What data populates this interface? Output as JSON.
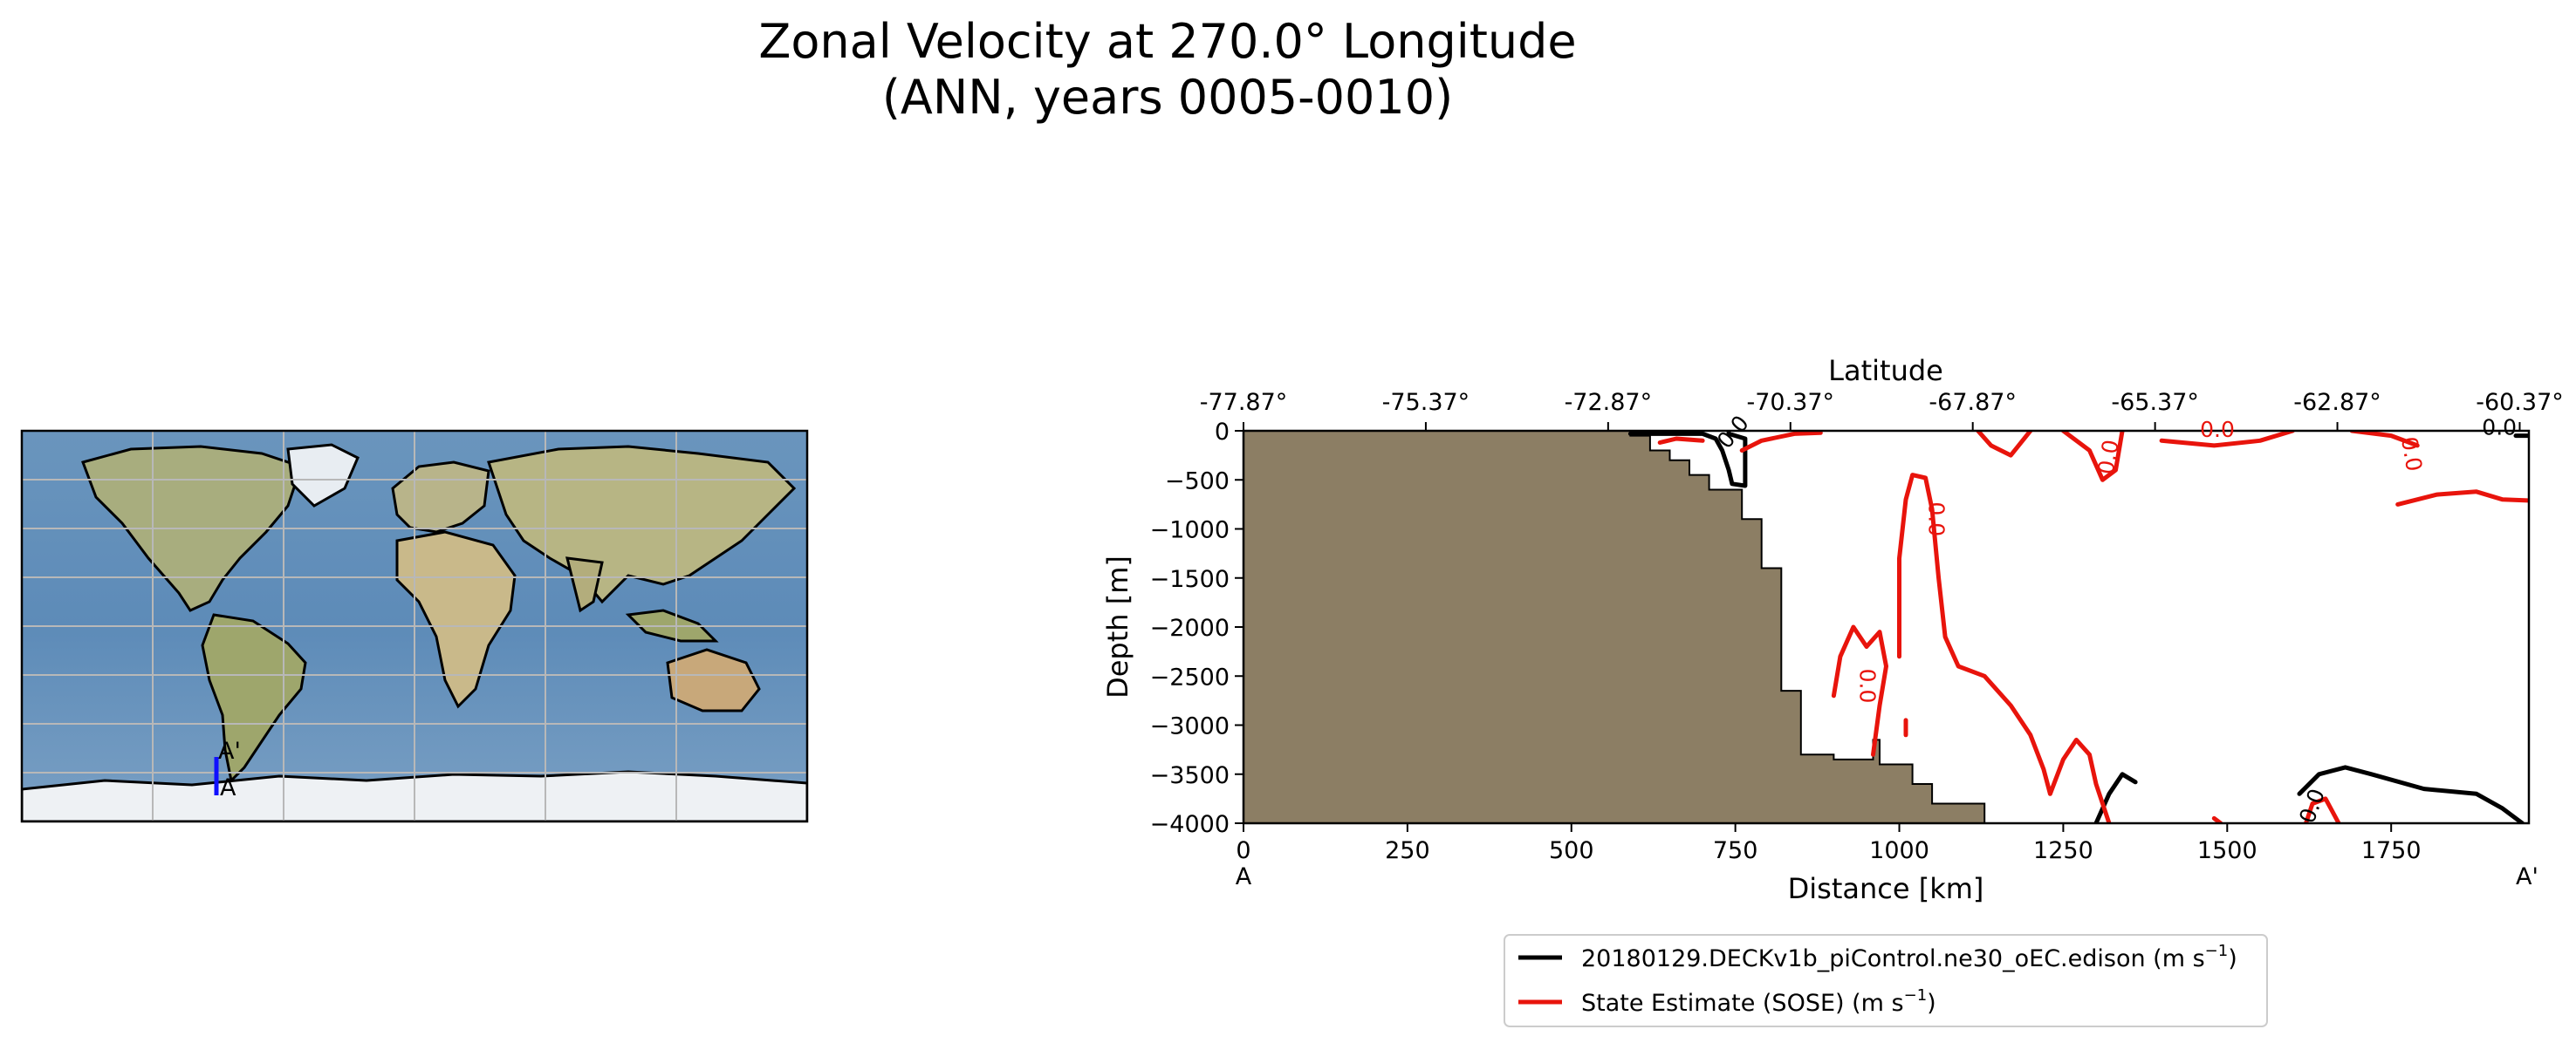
{
  "title_line1": "Zonal Velocity at 270.0° Longitude",
  "title_line2": "(ANN, years 0005-0010)",
  "map": {
    "section_start_label": "A",
    "section_end_label": "A'"
  },
  "chart_data": {
    "type": "contour",
    "xlabel": "Distance [km]",
    "ylabel": "Depth [m]",
    "top_xlabel": "Latitude",
    "xlim": [
      0,
      1960
    ],
    "ylim": [
      -4000,
      0
    ],
    "x_ticks": [
      0,
      250,
      500,
      750,
      1000,
      1250,
      1500,
      1750
    ],
    "x_tick_labels": [
      "0",
      "250",
      "500",
      "750",
      "1000",
      "1250",
      "1500",
      "1750"
    ],
    "y_ticks": [
      0,
      -500,
      -1000,
      -1500,
      -2000,
      -2500,
      -3000,
      -3500,
      -4000
    ],
    "y_tick_labels": [
      "0",
      "−500",
      "−1000",
      "−1500",
      "−2000",
      "−2500",
      "−3000",
      "−3500",
      "−4000"
    ],
    "top_ticks_km": [
      0,
      278,
      556,
      834,
      1112,
      1390,
      1668,
      1946
    ],
    "top_tick_labels": [
      "-77.87°",
      "-75.37°",
      "-72.87°",
      "-70.37°",
      "-67.87°",
      "-65.37°",
      "-62.87°",
      "-60.37°"
    ],
    "start_label": "A",
    "end_label": "A'",
    "bathymetry": [
      [
        0,
        0
      ],
      [
        590,
        0
      ],
      [
        590,
        -50
      ],
      [
        620,
        -50
      ],
      [
        620,
        -200
      ],
      [
        650,
        -200
      ],
      [
        650,
        -300
      ],
      [
        680,
        -300
      ],
      [
        680,
        -450
      ],
      [
        710,
        -450
      ],
      [
        710,
        -600
      ],
      [
        760,
        -600
      ],
      [
        760,
        -900
      ],
      [
        790,
        -900
      ],
      [
        790,
        -1400
      ],
      [
        820,
        -1400
      ],
      [
        820,
        -2650
      ],
      [
        850,
        -2650
      ],
      [
        850,
        -3300
      ],
      [
        900,
        -3300
      ],
      [
        900,
        -3350
      ],
      [
        960,
        -3350
      ],
      [
        960,
        -3150
      ],
      [
        970,
        -3150
      ],
      [
        970,
        -3400
      ],
      [
        1020,
        -3400
      ],
      [
        1020,
        -3600
      ],
      [
        1050,
        -3600
      ],
      [
        1050,
        -3800
      ],
      [
        1130,
        -3800
      ],
      [
        1130,
        -4000
      ],
      [
        0,
        -4000
      ]
    ],
    "contour_level_label": "0.0",
    "series": [
      {
        "name": "20180129.DECKv1b_piControl.ne30_oEC.edison (m s",
        "name_sup": "−1",
        "name_suffix": ")",
        "color": "#000000",
        "lines": [
          [
            [
              590,
              -30
            ],
            [
              700,
              -30
            ],
            [
              720,
              -80
            ],
            [
              730,
              -200
            ],
            [
              740,
              -400
            ],
            [
              745,
              -540
            ],
            [
              765,
              -560
            ],
            [
              765,
              -80
            ],
            [
              740,
              -30
            ],
            [
              740,
              0
            ]
          ],
          [
            [
              1300,
              -4000
            ],
            [
              1320,
              -3700
            ],
            [
              1340,
              -3500
            ],
            [
              1360,
              -3580
            ]
          ],
          [
            [
              1610,
              -3700
            ],
            [
              1640,
              -3500
            ],
            [
              1680,
              -3430
            ],
            [
              1720,
              -3500
            ],
            [
              1800,
              -3650
            ],
            [
              1880,
              -3700
            ],
            [
              1920,
              -3850
            ],
            [
              1950,
              -4000
            ]
          ],
          [
            [
              1940,
              -50
            ],
            [
              1958,
              -50
            ]
          ]
        ]
      },
      {
        "name": "State Estimate (SOSE) (m s",
        "name_sup": "−1",
        "name_suffix": ")",
        "color": "#e8140c",
        "lines": [
          [
            [
              635,
              -120
            ],
            [
              660,
              -80
            ],
            [
              700,
              -100
            ]
          ],
          [
            [
              760,
              -200
            ],
            [
              790,
              -100
            ],
            [
              840,
              -30
            ],
            [
              880,
              -20
            ]
          ],
          [
            [
              1000,
              -2300
            ],
            [
              1000,
              -1300
            ],
            [
              1010,
              -700
            ],
            [
              1020,
              -450
            ],
            [
              1040,
              -480
            ],
            [
              1050,
              -800
            ],
            [
              1060,
              -1500
            ],
            [
              1070,
              -2100
            ],
            [
              1090,
              -2400
            ],
            [
              1130,
              -2500
            ],
            [
              1170,
              -2800
            ],
            [
              1200,
              -3100
            ],
            [
              1220,
              -3450
            ],
            [
              1230,
              -3700
            ],
            [
              1250,
              -3350
            ],
            [
              1270,
              -3150
            ],
            [
              1290,
              -3300
            ],
            [
              1300,
              -3600
            ],
            [
              1320,
              -4000
            ]
          ],
          [
            [
              900,
              -2700
            ],
            [
              910,
              -2300
            ],
            [
              930,
              -2000
            ],
            [
              950,
              -2200
            ],
            [
              970,
              -2050
            ],
            [
              980,
              -2400
            ],
            [
              970,
              -2800
            ],
            [
              960,
              -3300
            ]
          ],
          [
            [
              1010,
              -2950
            ],
            [
              1010,
              -3100
            ]
          ],
          [
            [
              1120,
              0
            ],
            [
              1140,
              -150
            ],
            [
              1170,
              -250
            ],
            [
              1200,
              0
            ]
          ],
          [
            [
              1250,
              0
            ],
            [
              1290,
              -200
            ],
            [
              1310,
              -500
            ],
            [
              1330,
              -400
            ],
            [
              1340,
              0
            ]
          ],
          [
            [
              1400,
              -100
            ],
            [
              1480,
              -150
            ],
            [
              1550,
              -100
            ],
            [
              1600,
              0
            ]
          ],
          [
            [
              1690,
              0
            ],
            [
              1750,
              -50
            ],
            [
              1790,
              -150
            ]
          ],
          [
            [
              1760,
              -750
            ],
            [
              1820,
              -650
            ],
            [
              1880,
              -620
            ],
            [
              1920,
              -700
            ],
            [
              1958,
              -710
            ]
          ],
          [
            [
              1620,
              -4000
            ],
            [
              1630,
              -3800
            ],
            [
              1650,
              -3750
            ],
            [
              1670,
              -4000
            ]
          ],
          [
            [
              1480,
              -3950
            ],
            [
              1490,
              -4000
            ]
          ]
        ]
      }
    ]
  }
}
